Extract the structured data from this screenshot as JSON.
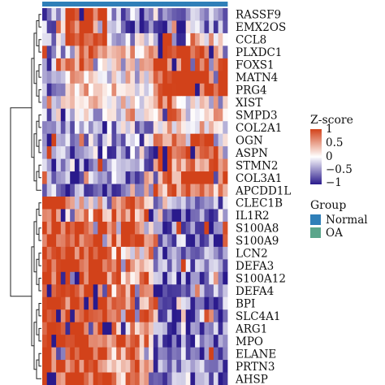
{
  "chart_data": {
    "type": "heatmap",
    "rows": [
      "RASSF9",
      "EMX2OS",
      "CCL8",
      "PLXDC1",
      "FOXS1",
      "MATN4",
      "PRG4",
      "XIST",
      "SMPD3",
      "COL2A1",
      "OGN",
      "ASPN",
      "STMN2",
      "COL3A1",
      "APCDD1L",
      "CLEC1B",
      "IL1R2",
      "S100A8",
      "S100A9",
      "LCN2",
      "DEFA3",
      "S100A12",
      "DEFA4",
      "BPI",
      "SLC4A1",
      "ARG1",
      "MPO",
      "ELANE",
      "PRTN3",
      "AHSP"
    ],
    "n_samples": 40,
    "column_groups": [
      "Normal",
      "OA"
    ],
    "column_group_values": [
      "Normal",
      "Normal",
      "Normal",
      "Normal",
      "Normal",
      "Normal",
      "Normal",
      "Normal",
      "Normal",
      "Normal",
      "Normal",
      "Normal",
      "Normal",
      "Normal",
      "Normal",
      "Normal",
      "Normal",
      "Normal",
      "Normal",
      "Normal",
      "Normal",
      "Normal",
      "Normal",
      "Normal",
      "Normal",
      "Normal",
      "Normal",
      "Normal",
      "Normal",
      "Normal",
      "Normal",
      "Normal",
      "Normal",
      "Normal",
      "Normal",
      "Normal",
      "Normal",
      "Normal",
      "Normal",
      "Normal"
    ],
    "colorscale": {
      "title": "Z-score",
      "ticks": [
        "1",
        "0.5",
        "0",
        "−0.5",
        "−1"
      ],
      "low_color": "#2a1a8c",
      "mid_color": "#ffffff",
      "high_color": "#d2421a"
    },
    "group_legend": {
      "title": "Group",
      "items": [
        {
          "label": "Normal",
          "color": "#2f7fb8"
        },
        {
          "label": "OA",
          "color": "#5aa58b"
        }
      ]
    },
    "pattern_profile": [
      [
        -0.4,
        1.0,
        -0.5,
        -0.6,
        -0.6
      ],
      [
        -0.4,
        0.9,
        -0.5,
        -0.6,
        -0.6
      ],
      [
        -0.4,
        0.8,
        -0.2,
        -0.6,
        0.3
      ],
      [
        -0.6,
        0.6,
        0.2,
        0.8,
        0.8
      ],
      [
        -0.6,
        0.5,
        0.1,
        0.9,
        1.0
      ],
      [
        -0.6,
        0.5,
        0.0,
        0.9,
        1.0
      ],
      [
        -0.6,
        0.2,
        0.2,
        1.0,
        1.0
      ],
      [
        -0.5,
        0.0,
        0.2,
        0.5,
        0.1
      ],
      [
        -0.6,
        -0.2,
        0.2,
        0.5,
        0.4
      ],
      [
        -0.6,
        -0.5,
        -0.3,
        0.3,
        0.2
      ],
      [
        -0.6,
        -0.4,
        -0.4,
        0.9,
        0.7
      ],
      [
        -0.6,
        -0.5,
        -0.4,
        0.9,
        0.8
      ],
      [
        -0.6,
        -0.6,
        -0.5,
        0.8,
        0.8
      ],
      [
        -0.6,
        -0.6,
        -0.5,
        0.8,
        0.8
      ],
      [
        -0.6,
        -0.6,
        -0.5,
        0.6,
        0.6
      ],
      [
        1.0,
        0.2,
        0.6,
        -0.6,
        -0.6
      ],
      [
        1.0,
        0.6,
        0.7,
        -0.6,
        -0.6
      ],
      [
        1.0,
        1.0,
        0.7,
        -0.6,
        -0.6
      ],
      [
        1.0,
        1.0,
        0.7,
        -0.6,
        -0.6
      ],
      [
        1.0,
        1.0,
        0.5,
        -0.6,
        -0.6
      ],
      [
        1.0,
        1.0,
        0.6,
        -0.6,
        -0.6
      ],
      [
        1.0,
        1.0,
        0.6,
        -0.6,
        -0.6
      ],
      [
        1.0,
        1.0,
        0.6,
        -0.6,
        -0.6
      ],
      [
        1.0,
        1.0,
        0.6,
        -0.6,
        -0.6
      ],
      [
        1.0,
        1.0,
        0.6,
        -0.6,
        -0.6
      ],
      [
        1.0,
        1.0,
        0.6,
        -0.6,
        -0.6
      ],
      [
        1.0,
        1.0,
        0.6,
        -0.6,
        -0.6
      ],
      [
        1.0,
        1.0,
        0.6,
        -0.6,
        -0.6
      ],
      [
        1.0,
        1.0,
        0.6,
        -0.6,
        -0.6
      ],
      [
        1.0,
        1.0,
        0.6,
        -0.6,
        -0.6
      ]
    ]
  }
}
